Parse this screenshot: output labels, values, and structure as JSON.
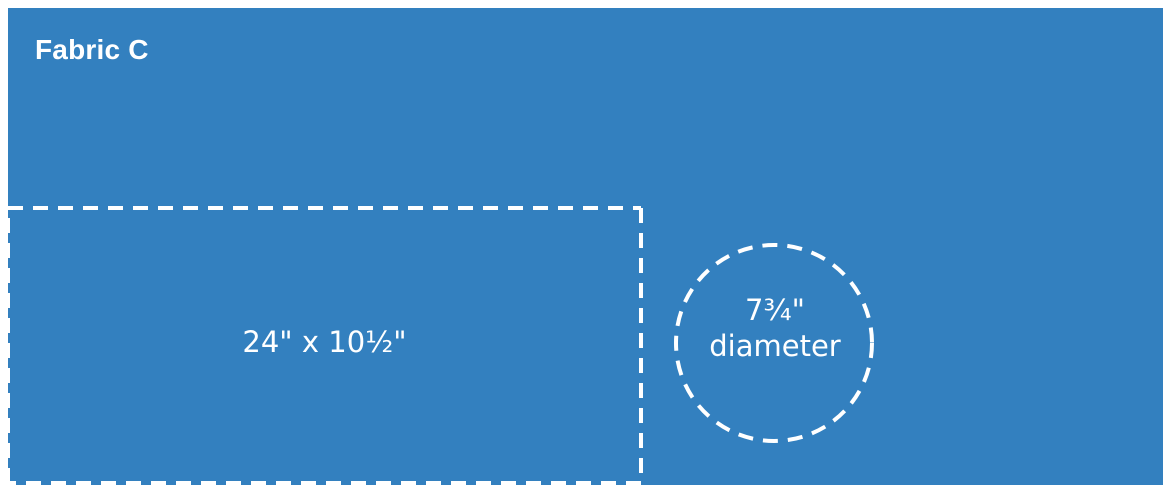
{
  "title": "Fabric C",
  "colors": {
    "fabric": "#3380bf",
    "outline": "#ffffff",
    "text": "#ffffff"
  },
  "pieces": {
    "rectangle": {
      "label": "24\" x 10½\""
    },
    "circle": {
      "size": "7¾\"",
      "caption": "diameter"
    }
  }
}
